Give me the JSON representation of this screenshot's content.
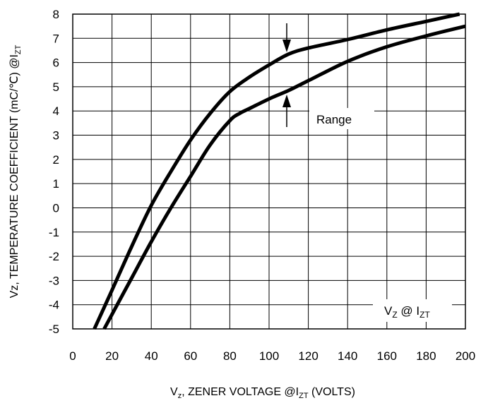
{
  "chart_data": {
    "type": "line",
    "title": "",
    "xlabel": "V₂, ZENER VOLTAGE @I₂ₜ (VOLTS)",
    "xlabel_parts": {
      "pre": "V",
      "sub1": "z",
      "mid": ", ZENER VOLTAGE @I",
      "sub2": "ZT",
      "post": " (VOLTS)"
    },
    "ylabel_parts": {
      "pre": "Vz, TEMPERATURE COEFFICIENT (mC/℃) @I",
      "sub": "ZT"
    },
    "xlim": [
      0,
      200
    ],
    "ylim": [
      -5,
      8
    ],
    "x_ticks": [
      "0",
      "20",
      "40",
      "60",
      "80",
      "100",
      "120",
      "140",
      "160",
      "180",
      "200"
    ],
    "y_ticks": [
      "-5",
      "-4",
      "-3",
      "-2",
      "-1",
      "0",
      "1",
      "2",
      "3",
      "4",
      "5",
      "6",
      "7",
      "8"
    ],
    "grid": true,
    "line_color": "#000000",
    "series": [
      {
        "x": [
          11,
          20,
          30,
          40,
          50,
          60,
          70,
          80,
          90,
          100,
          110,
          120,
          140,
          160,
          180,
          197
        ],
        "y": [
          -5,
          -3.4,
          -1.6,
          0.1,
          1.5,
          2.8,
          3.9,
          4.8,
          5.4,
          5.9,
          6.35,
          6.6,
          6.95,
          7.35,
          7.7,
          8
        ]
      },
      {
        "x": [
          16,
          20,
          30,
          40,
          50,
          60,
          70,
          80,
          85,
          90,
          100,
          110,
          120,
          140,
          160,
          180,
          200
        ],
        "y": [
          -5,
          -4.4,
          -2.9,
          -1.4,
          0,
          1.3,
          2.6,
          3.6,
          3.9,
          4.1,
          4.5,
          4.85,
          5.25,
          6.05,
          6.65,
          7.1,
          7.5
        ]
      }
    ],
    "annotations": [
      {
        "text": "Range"
      },
      {
        "parts": {
          "pre": "V",
          "sub1": "Z",
          "mid": " @ I",
          "sub2": "ZT"
        }
      }
    ]
  }
}
